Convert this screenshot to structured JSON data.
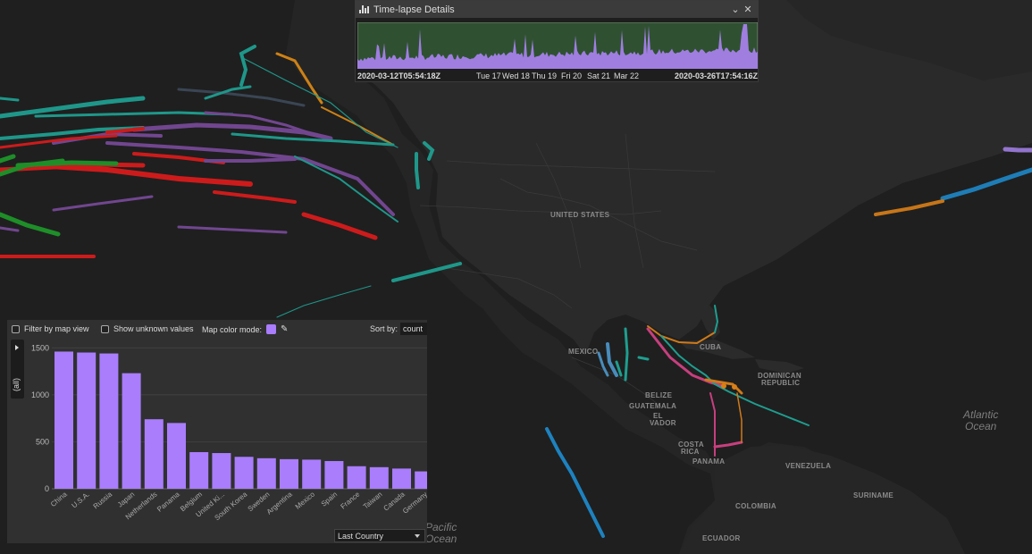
{
  "timelapse": {
    "title": "Time-lapse Details",
    "start": "2020-03-12T05:54:18Z",
    "end": "2020-03-26T17:54:16Z",
    "ticks": [
      "Tue 17",
      "Wed 18",
      "Thu 19",
      "Fri 20",
      "Sat 21",
      "Mar 22"
    ],
    "fill_color": "#2f5131",
    "series_color": "#9f7ee0"
  },
  "map_labels": {
    "countries": [
      "UNITED STATES",
      "MEXICO",
      "CUBA",
      "DOMINICAN",
      "REPUBLIC",
      "BELIZE",
      "GUATEMALA",
      "EL",
      "VADOR",
      "COSTA",
      "RICA",
      "PANAMA",
      "VENEZUELA",
      "SURINAME",
      "COLOMBIA",
      "ECUADOR"
    ],
    "ocean_atlantic": [
      "Atlantic",
      "Ocean"
    ],
    "ocean_pacific": [
      "Pacific",
      "Ocean"
    ]
  },
  "controls": {
    "filter_label": "Filter by map view",
    "unknown_label": "Show unknown values",
    "color_mode_label": "Map color mode:",
    "color_mode_color": "#a97dfc",
    "sort_label": "Sort by:",
    "sort_value": "count",
    "side_label": "(all)",
    "group_select": "Last Country"
  },
  "chart_data": {
    "type": "bar",
    "categories": [
      "China",
      "U.S.A.",
      "Russia",
      "Japan",
      "Netherlands",
      "Panama",
      "Belgium",
      "United Ki...",
      "South Korea",
      "Sweden",
      "Argentina",
      "Mexico",
      "Spain",
      "France",
      "Taiwan",
      "Canada",
      "Germany"
    ],
    "values": [
      1460,
      1450,
      1440,
      1230,
      740,
      700,
      390,
      380,
      340,
      325,
      315,
      310,
      295,
      240,
      230,
      215,
      185
    ],
    "yticks": [
      0,
      500,
      1000,
      1500
    ],
    "ylim": [
      0,
      1550
    ],
    "bar_color": "#a97dfc"
  }
}
